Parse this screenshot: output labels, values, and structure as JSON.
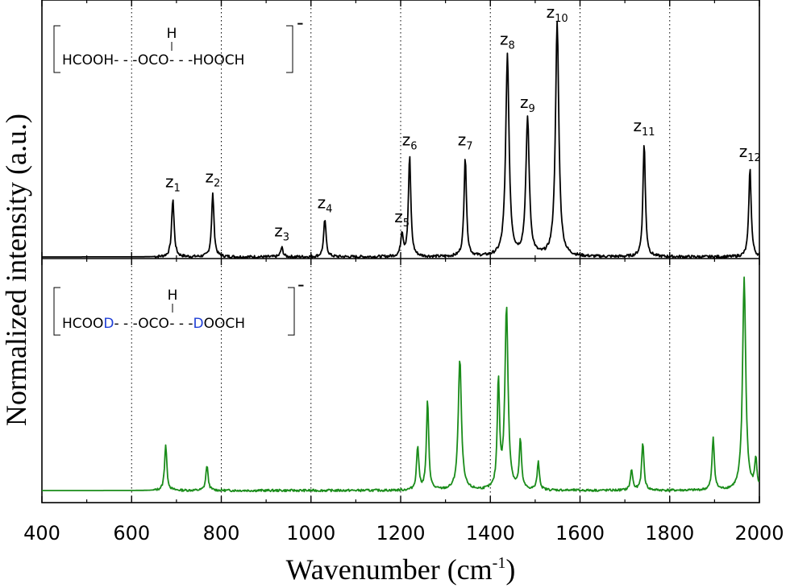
{
  "chart_data": {
    "type": "line",
    "xlabel": "Wavenumber",
    "xlabel_unit_base": "(cm",
    "xlabel_unit_exp": "-1",
    "xlabel_unit_close": ")",
    "ylabel": "Normalized intensity (a.u.)",
    "xlim": [
      400,
      2000
    ],
    "xticks": [
      "400",
      "600",
      "800",
      "1000",
      "1200",
      "1400",
      "1600",
      "1800",
      "2000"
    ],
    "gridlines_x": [
      600,
      800,
      1000,
      1200,
      1400,
      1600,
      1800
    ],
    "grid": "vertical dotted",
    "series": [
      {
        "color": "#000000",
        "peaks": [
          {
            "label": "z",
            "sub": "1",
            "x": 692,
            "y": 0.25
          },
          {
            "label": "z",
            "sub": "2",
            "x": 781,
            "y": 0.27
          },
          {
            "label": "z",
            "sub": "3",
            "x": 935,
            "y": 0.04
          },
          {
            "label": "z",
            "sub": "4",
            "x": 1031,
            "y": 0.16
          },
          {
            "label": "z",
            "sub": "5",
            "x": 1203,
            "y": 0.1
          },
          {
            "label": "z",
            "sub": "6",
            "x": 1220,
            "y": 0.43
          },
          {
            "label": "z",
            "sub": "7",
            "x": 1344,
            "y": 0.43
          },
          {
            "label": "z",
            "sub": "8",
            "x": 1438,
            "y": 0.86
          },
          {
            "label": "z",
            "sub": "9",
            "x": 1483,
            "y": 0.59
          },
          {
            "label": "z",
            "sub": "10",
            "x": 1549,
            "y": 1.0
          },
          {
            "label": "z",
            "sub": "11",
            "x": 1743,
            "y": 0.49
          },
          {
            "label": "z",
            "sub": "12",
            "x": 1979,
            "y": 0.38
          }
        ]
      },
      {
        "color": "#1a8c1a",
        "peaks": [
          {
            "x": 676,
            "y": 0.2
          },
          {
            "x": 768,
            "y": 0.11
          },
          {
            "x": 1238,
            "y": 0.19
          },
          {
            "x": 1260,
            "y": 0.39
          },
          {
            "x": 1332,
            "y": 0.57
          },
          {
            "x": 1418,
            "y": 0.47
          },
          {
            "x": 1436,
            "y": 0.79
          },
          {
            "x": 1467,
            "y": 0.21
          },
          {
            "x": 1507,
            "y": 0.12
          },
          {
            "x": 1715,
            "y": 0.09
          },
          {
            "x": 1740,
            "y": 0.21
          },
          {
            "x": 1897,
            "y": 0.23
          },
          {
            "x": 1966,
            "y": 0.93
          },
          {
            "x": 1992,
            "y": 0.13
          }
        ]
      }
    ],
    "insets": [
      {
        "top_atom": "H",
        "formula_parts": [
          {
            "text": "HCOOH",
            "color": "#000000"
          },
          {
            "text": "- - -",
            "color": "#000000"
          },
          {
            "text": "OCO",
            "color": "#000000"
          },
          {
            "text": "- - -",
            "color": "#000000"
          },
          {
            "text": "HOOCH",
            "color": "#000000"
          }
        ],
        "charge": "-"
      },
      {
        "top_atom": "H",
        "formula_parts": [
          {
            "text": "HCOO",
            "color": "#000000"
          },
          {
            "text": "D",
            "color": "#1f3fd6"
          },
          {
            "text": "- - -",
            "color": "#000000"
          },
          {
            "text": "OCO",
            "color": "#000000"
          },
          {
            "text": "- - -",
            "color": "#000000"
          },
          {
            "text": "D",
            "color": "#1f3fd6"
          },
          {
            "text": "OOCH",
            "color": "#000000"
          }
        ],
        "charge": "-"
      }
    ]
  }
}
